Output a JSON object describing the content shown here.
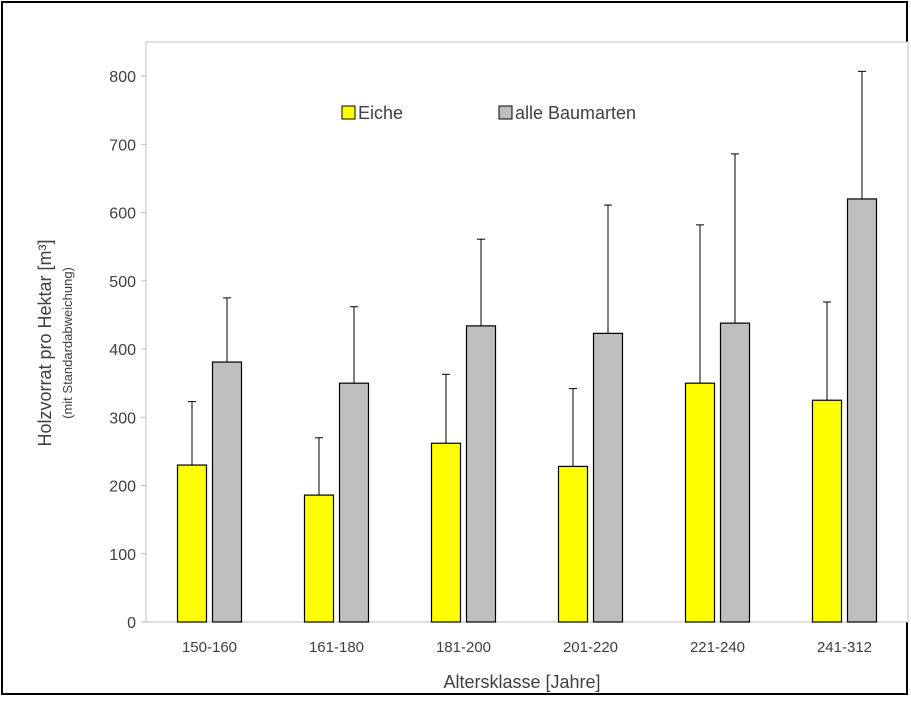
{
  "chart_data": {
    "type": "bar",
    "title": "",
    "xlabel": "Altersklasse [Jahre]",
    "ylabel": "Holzvorrat pro Hektar [m³]",
    "ylabel_sub": "(mit  Standardabweichung)",
    "categories": [
      "150-160",
      "161-180",
      "181-200",
      "201-220",
      "221-240",
      "241-312"
    ],
    "ylim": [
      0,
      850
    ],
    "yticks": [
      "0",
      "100",
      "200",
      "300",
      "400",
      "500",
      "600",
      "700",
      "800"
    ],
    "ytick_values": [
      0,
      100,
      200,
      300,
      400,
      500,
      600,
      700,
      800
    ],
    "grid": false,
    "legend": "top-center",
    "series": [
      {
        "name": "Eiche",
        "color": "#ffff00",
        "values": [
          230,
          186,
          262,
          228,
          350,
          325
        ],
        "error_upper": [
          323,
          270,
          363,
          342,
          582,
          469
        ]
      },
      {
        "name": "alle Baumarten",
        "color": "#bfbfbf",
        "values": [
          381,
          350,
          434,
          423,
          438,
          620
        ],
        "error_upper": [
          475,
          462,
          561,
          611,
          686,
          807
        ]
      }
    ]
  }
}
